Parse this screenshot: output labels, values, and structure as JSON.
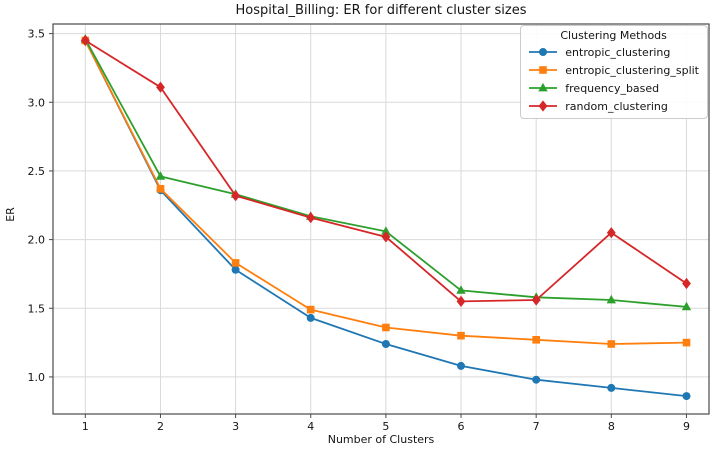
{
  "chart_data": {
    "type": "line",
    "title": "Hospital_Billing: ER for different cluster sizes",
    "xlabel": "Number of Clusters",
    "ylabel": "ER",
    "x": [
      1,
      2,
      3,
      4,
      5,
      6,
      7,
      8,
      9
    ],
    "xticks": [
      1,
      2,
      3,
      4,
      5,
      6,
      7,
      8,
      9
    ],
    "yticks": [
      1.0,
      1.5,
      2.0,
      2.5,
      3.0,
      3.5
    ],
    "xlim": [
      0.57,
      9.3
    ],
    "ylim": [
      0.73,
      3.57
    ],
    "grid": true,
    "grid_color": "#d9d9d9",
    "spine_color": "#4a4a4a",
    "legend": {
      "title": "Clustering Methods",
      "position": "upper right"
    },
    "series": [
      {
        "name": "entropic_clustering",
        "color": "#1f77b4",
        "marker": "circle",
        "values": [
          3.45,
          2.36,
          1.78,
          1.43,
          1.24,
          1.08,
          0.98,
          0.92,
          0.86
        ]
      },
      {
        "name": "entropic_clustering_split",
        "color": "#ff7f0e",
        "marker": "square",
        "values": [
          3.45,
          2.37,
          1.83,
          1.49,
          1.36,
          1.3,
          1.27,
          1.24,
          1.25
        ]
      },
      {
        "name": "frequency_based",
        "color": "#2ca02c",
        "marker": "triangle",
        "values": [
          3.46,
          2.46,
          2.33,
          2.17,
          2.06,
          1.63,
          1.58,
          1.56,
          1.51
        ]
      },
      {
        "name": "random_clustering",
        "color": "#d62728",
        "marker": "diamond",
        "values": [
          3.45,
          3.11,
          2.32,
          2.16,
          2.02,
          1.55,
          1.56,
          2.05,
          1.68
        ]
      }
    ]
  }
}
